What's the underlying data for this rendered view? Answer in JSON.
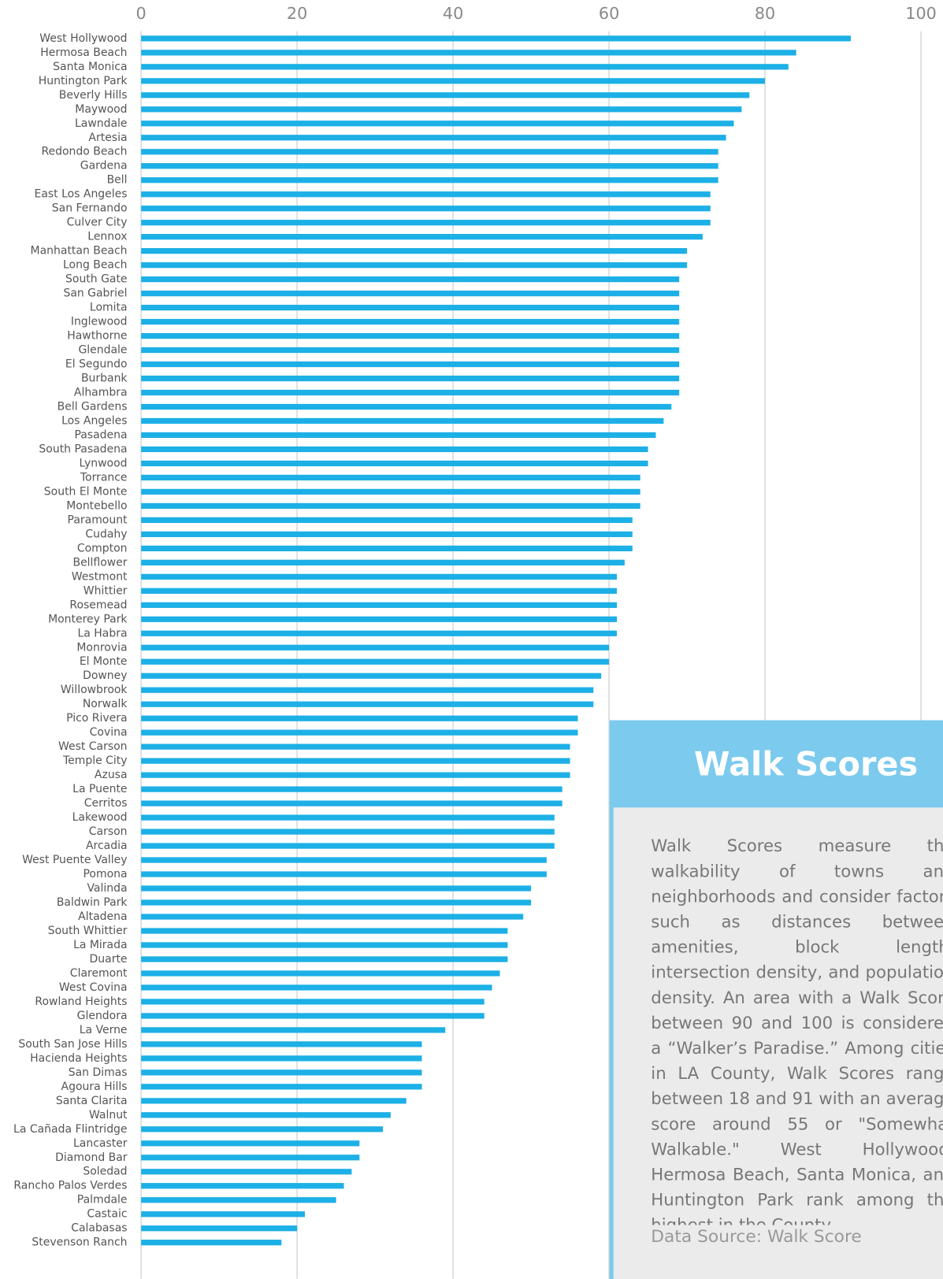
{
  "chart_data": {
    "type": "bar",
    "orientation": "horizontal",
    "categories": [
      "West Hollywood",
      "Hermosa Beach",
      "Santa Monica",
      "Huntington Park",
      "Beverly Hills",
      "Maywood",
      "Lawndale",
      "Artesia",
      "Redondo Beach",
      "Gardena",
      "Bell",
      "East Los Angeles",
      "San Fernando",
      "Culver City",
      "Lennox",
      "Manhattan Beach",
      "Long Beach",
      "South Gate",
      "San Gabriel",
      "Lomita",
      "Inglewood",
      "Hawthorne",
      "Glendale",
      "El Segundo",
      "Burbank",
      "Alhambra",
      "Bell Gardens",
      "Los Angeles",
      "Pasadena",
      "South Pasadena",
      "Lynwood",
      "Torrance",
      "South El Monte",
      "Montebello",
      "Paramount",
      "Cudahy",
      "Compton",
      "Bellflower",
      "Westmont",
      "Whittier",
      "Rosemead",
      "Monterey Park",
      "La Habra",
      "Monrovia",
      "El Monte",
      "Downey",
      "Willowbrook",
      "Norwalk",
      "Pico Rivera",
      "Covina",
      "West Carson",
      "Temple City",
      "Azusa",
      "La Puente",
      "Cerritos",
      "Lakewood",
      "Carson",
      "Arcadia",
      "West Puente Valley",
      "Pomona",
      "Valinda",
      "Baldwin Park",
      "Altadena",
      "South Whittier",
      "La Mirada",
      "Duarte",
      "Claremont",
      "West Covina",
      "Rowland Heights",
      "Glendora",
      "La Verne",
      "South San Jose Hills",
      "Hacienda Heights",
      "San Dimas",
      "Agoura Hills",
      "Santa Clarita",
      "Walnut",
      "La Cañada Flintridge",
      "Lancaster",
      "Diamond Bar",
      "Soledad",
      "Rancho Palos Verdes",
      "Palmdale",
      "Castaic",
      "Calabasas",
      "Stevenson Ranch"
    ],
    "values": [
      91,
      84,
      83,
      80,
      78,
      77,
      76,
      75,
      74,
      74,
      74,
      73,
      73,
      73,
      72,
      70,
      70,
      69,
      69,
      69,
      69,
      69,
      69,
      69,
      69,
      69,
      68,
      67,
      66,
      65,
      65,
      64,
      64,
      64,
      63,
      63,
      63,
      62,
      61,
      61,
      61,
      61,
      61,
      60,
      60,
      59,
      58,
      58,
      56,
      56,
      55,
      55,
      55,
      54,
      54,
      53,
      53,
      53,
      52,
      52,
      50,
      50,
      49,
      47,
      47,
      47,
      46,
      45,
      44,
      44,
      39,
      36,
      36,
      36,
      36,
      34,
      32,
      31,
      28,
      28,
      27,
      26,
      25,
      21,
      20,
      18
    ],
    "color": "#1cb0e6",
    "xlim": [
      0,
      100
    ],
    "xticks": [
      0,
      20,
      40,
      60,
      80,
      100
    ],
    "grid": true
  },
  "text_panel": {
    "title": "Walk Scores",
    "text": "Walk Scores measure the walkability of towns and neighborhoods and consider factors such as distances between amenities, block length, intersection density, and population density. An area with a Walk Score between 90 and 100 is considered a “Walker’s Paradise.” Among cities in LA County, Walk Scores range between 18 and 91 with an average score around 55 or \"Somewhat Walkable.\" West Hollywood, Hermosa Beach, Santa Monica, and Huntington Park rank among the highest in the County.",
    "source": "Data Source: Walk Score"
  }
}
